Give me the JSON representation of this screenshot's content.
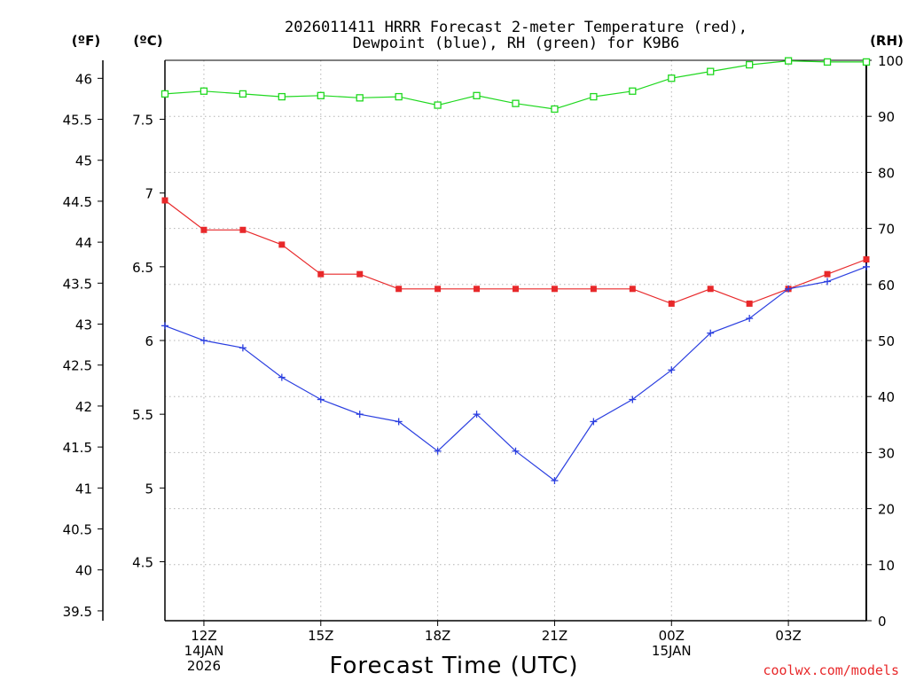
{
  "chart_data": {
    "type": "line",
    "title_line1": "2026011411 HRRR Forecast 2-meter Temperature (red),",
    "title_line2": "Dewpoint (blue), RH (green) for K9B6",
    "xlabel": "Forecast Time (UTC)",
    "unit_f": "(ºF)",
    "unit_c": "(ºC)",
    "unit_rh": "(RH)",
    "credit": "coolwx.com/models",
    "colors": {
      "temperature": "#e8282a",
      "dewpoint": "#2b3fe0",
      "rh": "#1fd81f"
    },
    "x": [
      11,
      12,
      13,
      14,
      15,
      16,
      17,
      18,
      19,
      20,
      21,
      22,
      23,
      24,
      25,
      26,
      27,
      28,
      29
    ],
    "xlim": [
      11,
      29
    ],
    "x_ticks": [
      {
        "value": 12,
        "lines": [
          "12Z",
          "14JAN",
          "2026"
        ]
      },
      {
        "value": 15,
        "lines": [
          "15Z"
        ]
      },
      {
        "value": 18,
        "lines": [
          "18Z"
        ]
      },
      {
        "value": 21,
        "lines": [
          "21Z"
        ]
      },
      {
        "value": 24,
        "lines": [
          "00Z",
          "15JAN"
        ]
      },
      {
        "value": 27,
        "lines": [
          "03Z"
        ]
      }
    ],
    "ylim_c": [
      4.1,
      7.9
    ],
    "ylim_rh": [
      0,
      100
    ],
    "y_ticks_c": [
      "4.5",
      "5",
      "5.5",
      "6",
      "6.5",
      "7",
      "7.5"
    ],
    "y_ticks_f": [
      "39.5",
      "40",
      "40.5",
      "41",
      "41.5",
      "42",
      "42.5",
      "43",
      "43.5",
      "44",
      "44.5",
      "45",
      "45.5",
      "46"
    ],
    "y_ticks_rh": [
      "0",
      "10",
      "20",
      "30",
      "40",
      "50",
      "60",
      "70",
      "80",
      "90",
      "100"
    ],
    "series": [
      {
        "name": "Temperature",
        "unit": "C",
        "marker": "filled-square",
        "values": [
          6.95,
          6.75,
          6.75,
          6.65,
          6.45,
          6.45,
          6.35,
          6.35,
          6.35,
          6.35,
          6.35,
          6.35,
          6.35,
          6.25,
          6.35,
          6.25,
          6.35,
          6.45,
          6.55
        ]
      },
      {
        "name": "Dewpoint",
        "unit": "C",
        "marker": "plus",
        "values": [
          6.1,
          6.0,
          5.95,
          5.75,
          5.6,
          5.5,
          5.45,
          5.25,
          5.5,
          5.25,
          5.05,
          5.45,
          5.6,
          5.8,
          6.05,
          6.15,
          6.35,
          6.4,
          6.5
        ]
      },
      {
        "name": "RH",
        "unit": "%",
        "marker": "open-square",
        "values": [
          94,
          94.5,
          94,
          93.5,
          93.7,
          93.3,
          93.5,
          92,
          93.7,
          92.3,
          91.3,
          93.5,
          94.5,
          96.8,
          98,
          99.2,
          99.9,
          99.7,
          99.7
        ]
      }
    ]
  }
}
